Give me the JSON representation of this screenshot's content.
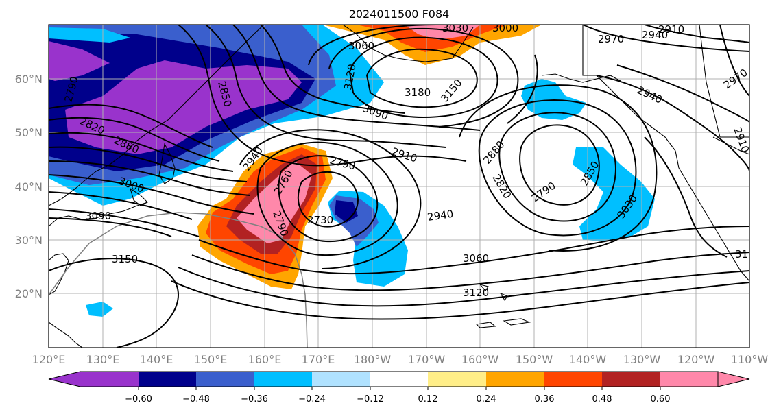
{
  "title": "2024011500 F084",
  "map": {
    "lat_ticks": [
      "60°N",
      "50°N",
      "40°N",
      "30°N",
      "20°N"
    ],
    "lon_ticks": [
      "120°E",
      "130°E",
      "140°E",
      "150°E",
      "160°E",
      "170°E",
      "180°W",
      "170°W",
      "160°W",
      "150°W",
      "140°W",
      "130°W",
      "120°W",
      "110°W"
    ],
    "grid": true
  },
  "contour_labels": [
    "3030",
    "3000",
    "2910",
    "2940",
    "2970",
    "3060",
    "3120",
    "3180",
    "3150",
    "3090",
    "2790",
    "2850",
    "2820",
    "2880",
    "2910",
    "2790",
    "2880",
    "2820",
    "2790",
    "2850",
    "3030",
    "2940",
    "3000",
    "3090",
    "2760",
    "2730",
    "2790",
    "2940",
    "3060",
    "3120",
    "3150",
    "2910",
    "2970",
    "2940",
    "31"
  ],
  "colorbar": {
    "ticks": [
      "−0.60",
      "−0.48",
      "−0.36",
      "−0.24",
      "−0.12",
      "0.12",
      "0.24",
      "0.36",
      "0.48",
      "0.60"
    ],
    "colors": [
      "#9933cc",
      "#00008b",
      "#3a5fcd",
      "#00bfff",
      "#b0e2ff",
      "#ffffff",
      "#ffee88",
      "#ffa500",
      "#ff4500",
      "#b22222",
      "#ff88aa",
      "#ff88aa"
    ]
  }
}
